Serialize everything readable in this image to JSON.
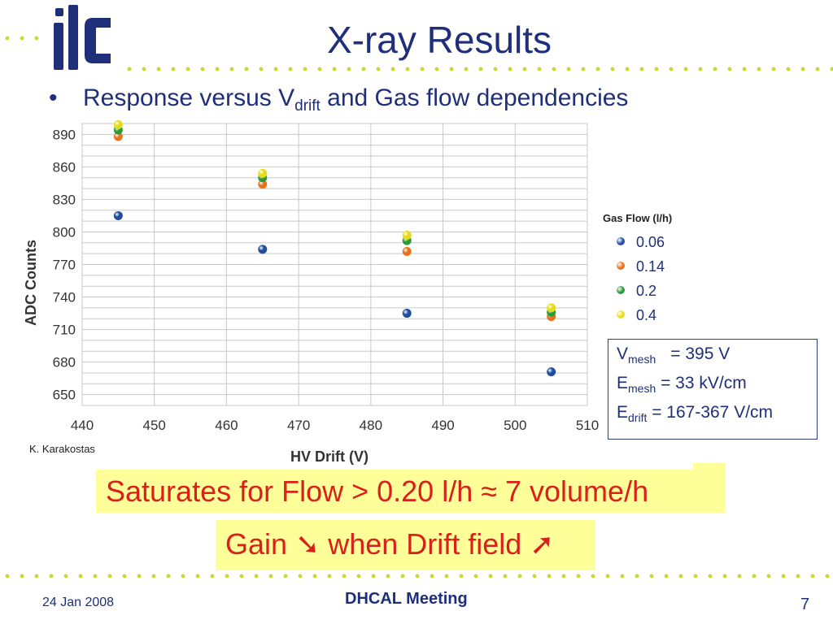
{
  "logo": {
    "text": "ilc"
  },
  "slide": {
    "title": "X-ray Results",
    "bullet": {
      "text_before": "Response versus V",
      "subscript": "drift",
      "text_after": " and Gas flow dependencies"
    }
  },
  "chart_data": {
    "type": "scatter",
    "title": "",
    "xlabel": "HV Drift (V)",
    "ylabel": "ADC Counts",
    "xlim": [
      440,
      510
    ],
    "ylim": [
      640,
      900
    ],
    "x_ticks": [
      440,
      450,
      460,
      470,
      480,
      490,
      500,
      510
    ],
    "y_ticks": [
      650,
      680,
      710,
      740,
      770,
      800,
      830,
      860,
      890
    ],
    "grid": true,
    "legend_title": "Gas Flow (l/h)",
    "legend_position": "right",
    "series": [
      {
        "name": "0.06",
        "color": "#1f4e9e",
        "points": [
          [
            445,
            815
          ],
          [
            465,
            784
          ],
          [
            485,
            725
          ],
          [
            505,
            671
          ]
        ]
      },
      {
        "name": "0.14",
        "color": "#e8731c",
        "points": [
          [
            445,
            888
          ],
          [
            465,
            844
          ],
          [
            485,
            782
          ],
          [
            505,
            722
          ]
        ]
      },
      {
        "name": "0.2",
        "color": "#2a9a3a",
        "points": [
          [
            445,
            894
          ],
          [
            465,
            850
          ],
          [
            485,
            792
          ],
          [
            505,
            726
          ]
        ]
      },
      {
        "name": "0.4",
        "color": "#e7dc1a",
        "points": [
          [
            445,
            899
          ],
          [
            465,
            854
          ],
          [
            485,
            797
          ],
          [
            505,
            730
          ]
        ]
      }
    ]
  },
  "params": {
    "vmesh": {
      "sym": "V",
      "sub": "mesh",
      "val": "= 395 V"
    },
    "emesh": {
      "sym": "E",
      "sub": "mesh",
      "val": " = 33 kV/cm"
    },
    "edrift": {
      "sym": "E",
      "sub": "drift",
      "val": " = 167-367 V/cm"
    }
  },
  "author": "K. Karakostas",
  "highlight1": "Saturates for Flow > 0.20 l/h ≈ 7 volume/h",
  "highlight2": "Gain ➘ when Drift field ➚",
  "footer": {
    "date": "24 Jan 2008",
    "meeting": "DHCAL Meeting",
    "page": "7"
  }
}
